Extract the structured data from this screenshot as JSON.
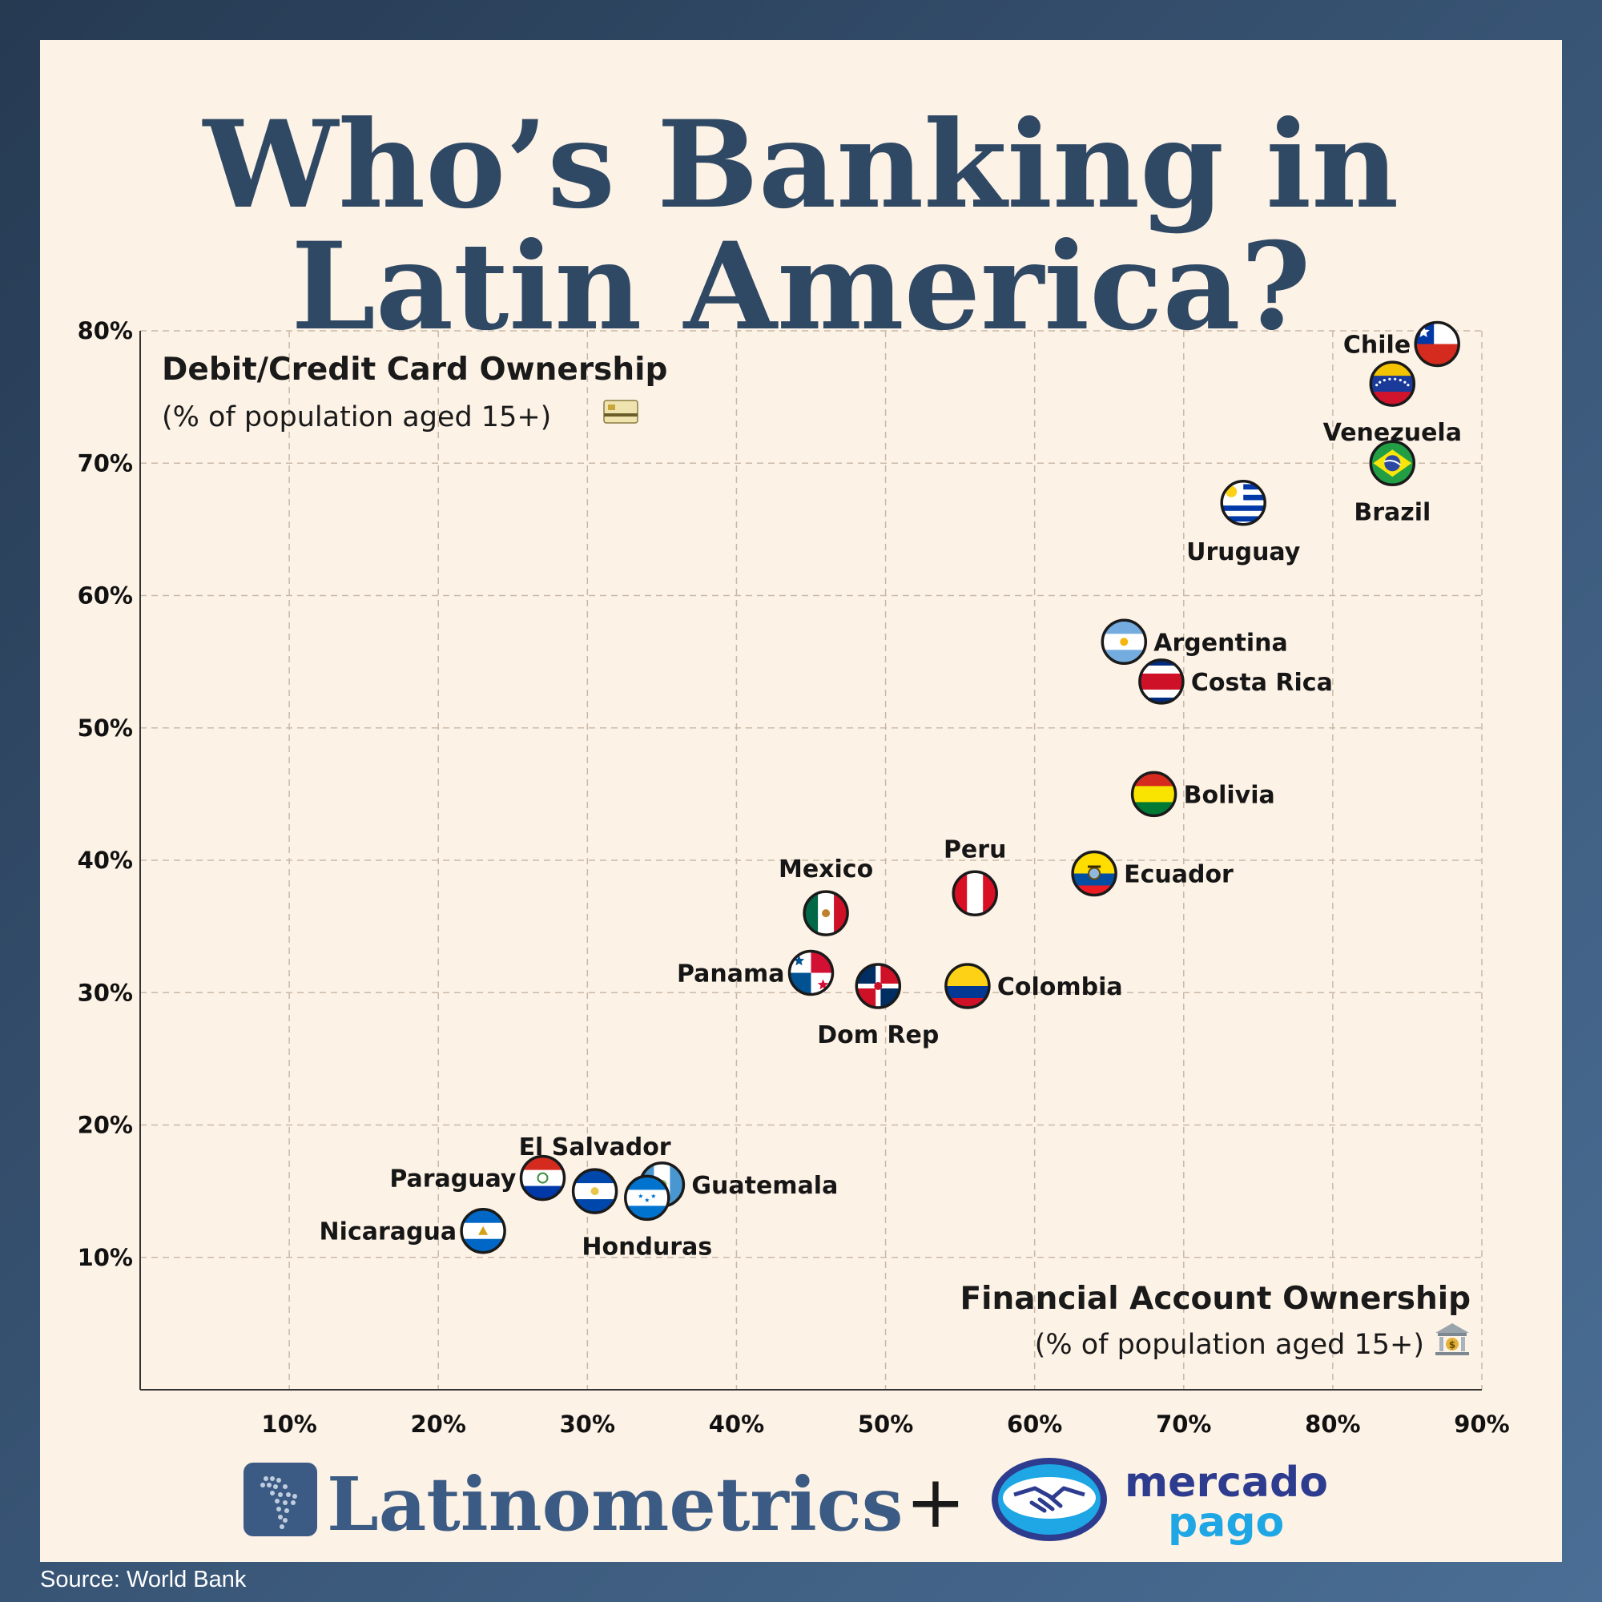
{
  "title_line1": "Who’s Banking in",
  "title_line2": "Latin America?",
  "source": "Source: World Bank",
  "brand_left": "Latinometrics",
  "brand_plus": "+",
  "brand_right_line1": "mercado",
  "brand_right_line2": "pago",
  "colors": {
    "title": "#2f4864",
    "grid": "#c9b9a8",
    "brand_blue": "#2d3c8e",
    "brand_lightblue": "#1ea7e4",
    "latinometrics": "#3b5b84"
  },
  "chart_data": {
    "type": "scatter",
    "ylabel": "Debit/Credit Card Ownership",
    "ylabel_sub": "(% of population aged 15+)",
    "ylabel_icon": "credit-card-icon",
    "xlabel": "Financial Account Ownership",
    "xlabel_sub": "(% of population aged 15+)",
    "xlabel_icon": "bank-icon",
    "xlim": [
      0,
      90
    ],
    "ylim": [
      0,
      80
    ],
    "xticks": [
      10,
      20,
      30,
      40,
      50,
      60,
      70,
      80,
      90
    ],
    "yticks": [
      10,
      20,
      30,
      40,
      50,
      60,
      70,
      80
    ],
    "xtick_labels": [
      "10%",
      "20%",
      "30%",
      "40%",
      "50%",
      "60%",
      "70%",
      "80%",
      "90%"
    ],
    "ytick_labels": [
      "10%",
      "20%",
      "30%",
      "40%",
      "50%",
      "60%",
      "70%",
      "80%"
    ],
    "grid": true,
    "points": [
      {
        "name": "Chile",
        "x": 87,
        "y": 79,
        "label_pos": "left",
        "flag": "chile"
      },
      {
        "name": "Venezuela",
        "x": 84,
        "y": 76,
        "label_pos": "below",
        "flag": "venezuela"
      },
      {
        "name": "Brazil",
        "x": 84,
        "y": 70,
        "label_pos": "below",
        "flag": "brazil"
      },
      {
        "name": "Uruguay",
        "x": 74,
        "y": 67,
        "label_pos": "below",
        "flag": "uruguay"
      },
      {
        "name": "Argentina",
        "x": 66,
        "y": 56.5,
        "label_pos": "right",
        "flag": "argentina"
      },
      {
        "name": "Costa Rica",
        "x": 68.5,
        "y": 53.5,
        "label_pos": "right",
        "flag": "costarica"
      },
      {
        "name": "Bolivia",
        "x": 68,
        "y": 45,
        "label_pos": "right",
        "flag": "bolivia"
      },
      {
        "name": "Ecuador",
        "x": 64,
        "y": 39,
        "label_pos": "right",
        "flag": "ecuador"
      },
      {
        "name": "Peru",
        "x": 56,
        "y": 37.5,
        "label_pos": "above",
        "flag": "peru"
      },
      {
        "name": "Mexico",
        "x": 46,
        "y": 36,
        "label_pos": "above",
        "flag": "mexico"
      },
      {
        "name": "Panama",
        "x": 45,
        "y": 31.5,
        "label_pos": "left",
        "flag": "panama"
      },
      {
        "name": "Dom Rep",
        "x": 49.5,
        "y": 30.5,
        "label_pos": "below",
        "flag": "domrep"
      },
      {
        "name": "Colombia",
        "x": 55.5,
        "y": 30.5,
        "label_pos": "right",
        "flag": "colombia"
      },
      {
        "name": "El Salvador",
        "x": 30.5,
        "y": 15,
        "label_pos": "above",
        "flag": "elsalvador"
      },
      {
        "name": "Paraguay",
        "x": 27,
        "y": 16,
        "label_pos": "left",
        "flag": "paraguay"
      },
      {
        "name": "Guatemala",
        "x": 35,
        "y": 15.5,
        "label_pos": "right",
        "flag": "guatemala"
      },
      {
        "name": "Honduras",
        "x": 34,
        "y": 14.5,
        "label_pos": "below",
        "flag": "honduras"
      },
      {
        "name": "Nicaragua",
        "x": 23,
        "y": 12,
        "label_pos": "left",
        "flag": "nicaragua"
      }
    ]
  }
}
